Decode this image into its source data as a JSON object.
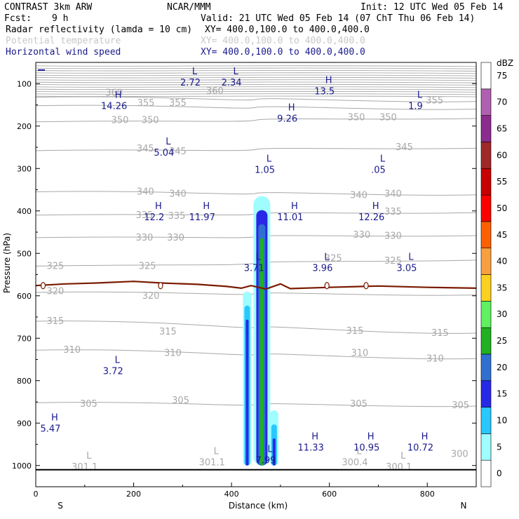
{
  "header": {
    "model": "CONTRAST  3km ARW",
    "center": "NCAR/MMM",
    "init": "Init: 12 UTC Wed 05 Feb 14",
    "fcst_label": "Fcst:",
    "fcst_value": "9 h",
    "valid": "Valid: 21 UTC Wed 05 Feb 14 (07 ChT Thu 06 Feb 14)",
    "fields": [
      {
        "name": "Radar reflectivity (lamda = 10 cm)",
        "xy": "XY= 400.0,100.0 to 400.0,400.0",
        "color": "#000000"
      },
      {
        "name": "Potential temperature",
        "xy": "XY= 400.0,100.0 to 400.0,400.0",
        "color": "#c8c8c8"
      },
      {
        "name": "Horizontal wind speed",
        "xy": "XY= 400.0,100.0 to 400.0,400.0",
        "color": "#1a1a8c"
      }
    ]
  },
  "colors": {
    "theta": "#a8a8a8",
    "wind_label": "#1a1a8c",
    "trop_line": "#7a1a00"
  },
  "chart_data": {
    "type": "contour-cross-section",
    "xlabel": "Distance (km)",
    "ylabel": "Pressure (hPa)",
    "xlim": [
      0,
      900
    ],
    "ylim": [
      1050,
      50
    ],
    "x_ticks": [
      0,
      200,
      400,
      600,
      800
    ],
    "y_ticks": [
      100,
      200,
      300,
      400,
      500,
      600,
      700,
      800,
      900,
      1000
    ],
    "left_end": "S",
    "right_end": "N",
    "colorbar": {
      "unit": "dBZ",
      "levels": [
        0,
        5,
        10,
        15,
        20,
        25,
        30,
        35,
        40,
        45,
        50,
        55,
        60,
        65,
        70,
        75
      ],
      "colors": [
        "#ffffff",
        "#9ffcff",
        "#28c8ff",
        "#2828e8",
        "#3070d0",
        "#20b020",
        "#60f060",
        "#fcd020",
        "#f8a040",
        "#fc6000",
        "#fc0000",
        "#c80000",
        "#a02828",
        "#8c2c8c",
        "#b060b0",
        "#ffffff"
      ]
    },
    "reflectivity_cells": [
      {
        "x_center": 462,
        "p_top": 365,
        "p_bottom": 1000,
        "max_dbz": 30
      },
      {
        "x_center": 432,
        "p_top": 590,
        "p_bottom": 1000,
        "max_dbz": 20
      },
      {
        "x_center": 487,
        "p_top": 870,
        "p_bottom": 1000,
        "max_dbz": 20
      }
    ],
    "theta_labels": [
      {
        "text": "360",
        "x": 160,
        "p": 122
      },
      {
        "text": "360",
        "x": 366,
        "p": 118
      },
      {
        "text": "355",
        "x": 225,
        "p": 146
      },
      {
        "text": "355",
        "x": 290,
        "p": 146
      },
      {
        "text": "355",
        "x": 815,
        "p": 140
      },
      {
        "text": "350",
        "x": 172,
        "p": 186
      },
      {
        "text": "350",
        "x": 234,
        "p": 186
      },
      {
        "text": "350",
        "x": 655,
        "p": 180
      },
      {
        "text": "350",
        "x": 720,
        "p": 180
      },
      {
        "text": "345",
        "x": 224,
        "p": 253
      },
      {
        "text": "345",
        "x": 290,
        "p": 260
      },
      {
        "text": "345",
        "x": 753,
        "p": 250
      },
      {
        "text": "340",
        "x": 224,
        "p": 355
      },
      {
        "text": "340",
        "x": 290,
        "p": 360
      },
      {
        "text": "340",
        "x": 660,
        "p": 363
      },
      {
        "text": "340",
        "x": 730,
        "p": 360
      },
      {
        "text": "335",
        "x": 222,
        "p": 410
      },
      {
        "text": "335",
        "x": 288,
        "p": 412
      },
      {
        "text": "335",
        "x": 730,
        "p": 402
      },
      {
        "text": "330",
        "x": 222,
        "p": 463
      },
      {
        "text": "330",
        "x": 286,
        "p": 463
      },
      {
        "text": "330",
        "x": 666,
        "p": 457
      },
      {
        "text": "330",
        "x": 730,
        "p": 459
      },
      {
        "text": "325",
        "x": 40,
        "p": 530
      },
      {
        "text": "325",
        "x": 228,
        "p": 530
      },
      {
        "text": "325",
        "x": 608,
        "p": 512
      },
      {
        "text": "325",
        "x": 730,
        "p": 518
      },
      {
        "text": "320",
        "x": 40,
        "p": 590
      },
      {
        "text": "320",
        "x": 235,
        "p": 600
      },
      {
        "text": "315",
        "x": 40,
        "p": 660
      },
      {
        "text": "315",
        "x": 270,
        "p": 685
      },
      {
        "text": "315",
        "x": 652,
        "p": 683
      },
      {
        "text": "315",
        "x": 826,
        "p": 688
      },
      {
        "text": "310",
        "x": 74,
        "p": 728
      },
      {
        "text": "310",
        "x": 280,
        "p": 735
      },
      {
        "text": "310",
        "x": 662,
        "p": 735
      },
      {
        "text": "310",
        "x": 816,
        "p": 748
      },
      {
        "text": "305",
        "x": 108,
        "p": 855
      },
      {
        "text": "305",
        "x": 296,
        "p": 847
      },
      {
        "text": "305",
        "x": 660,
        "p": 855
      },
      {
        "text": "305",
        "x": 868,
        "p": 858
      },
      {
        "text": "300",
        "x": 866,
        "p": 973
      }
    ],
    "wind_extrema": [
      {
        "type": "L",
        "value": "2.72",
        "x": 316,
        "p": 95
      },
      {
        "type": "L",
        "value": "2.34",
        "x": 400,
        "p": 95
      },
      {
        "type": "H",
        "value": "13.5",
        "x": 590,
        "p": 115
      },
      {
        "type": "H",
        "value": "14.26",
        "x": 160,
        "p": 150
      },
      {
        "type": "L",
        "value": "1.9",
        "x": 776,
        "p": 150
      },
      {
        "type": "H",
        "value": "9.26",
        "x": 514,
        "p": 180
      },
      {
        "type": "L",
        "value": "5.04",
        "x": 262,
        "p": 260
      },
      {
        "type": "L",
        "value": "1.05",
        "x": 468,
        "p": 300
      },
      {
        "type": "L",
        "value": ".05",
        "x": 700,
        "p": 300
      },
      {
        "type": "H",
        "value": "12.2",
        "x": 242,
        "p": 412
      },
      {
        "type": "H",
        "value": "11.97",
        "x": 340,
        "p": 412
      },
      {
        "type": "H",
        "value": "11.01",
        "x": 520,
        "p": 412
      },
      {
        "type": "H",
        "value": "12.26",
        "x": 686,
        "p": 412
      },
      {
        "type": "L",
        "value": "3.71",
        "x": 446,
        "p": 532
      },
      {
        "type": "L",
        "value": "3.96",
        "x": 586,
        "p": 532
      },
      {
        "type": "L",
        "value": "3.05",
        "x": 758,
        "p": 532
      },
      {
        "type": "L",
        "value": "3.72",
        "x": 158,
        "p": 775
      },
      {
        "type": "H",
        "value": "5.47",
        "x": 30,
        "p": 910
      },
      {
        "type": "H",
        "value": "11.33",
        "x": 562,
        "p": 955
      },
      {
        "type": "H",
        "value": "10.95",
        "x": 676,
        "p": 955
      },
      {
        "type": "H",
        "value": "10.72",
        "x": 786,
        "p": 955
      },
      {
        "type": "L",
        "value": "7.99",
        "x": 470,
        "p": 985
      },
      {
        "type": "L",
        "value": "301.1",
        "x": 100,
        "p": 1000,
        "theta": true
      },
      {
        "type": "L",
        "value": "301.1",
        "x": 360,
        "p": 990,
        "theta": true
      },
      {
        "type": "L",
        "value": "300.4",
        "x": 652,
        "p": 990,
        "theta": true
      },
      {
        "type": "L",
        "value": "300.1",
        "x": 742,
        "p": 1000,
        "theta": true
      }
    ]
  }
}
